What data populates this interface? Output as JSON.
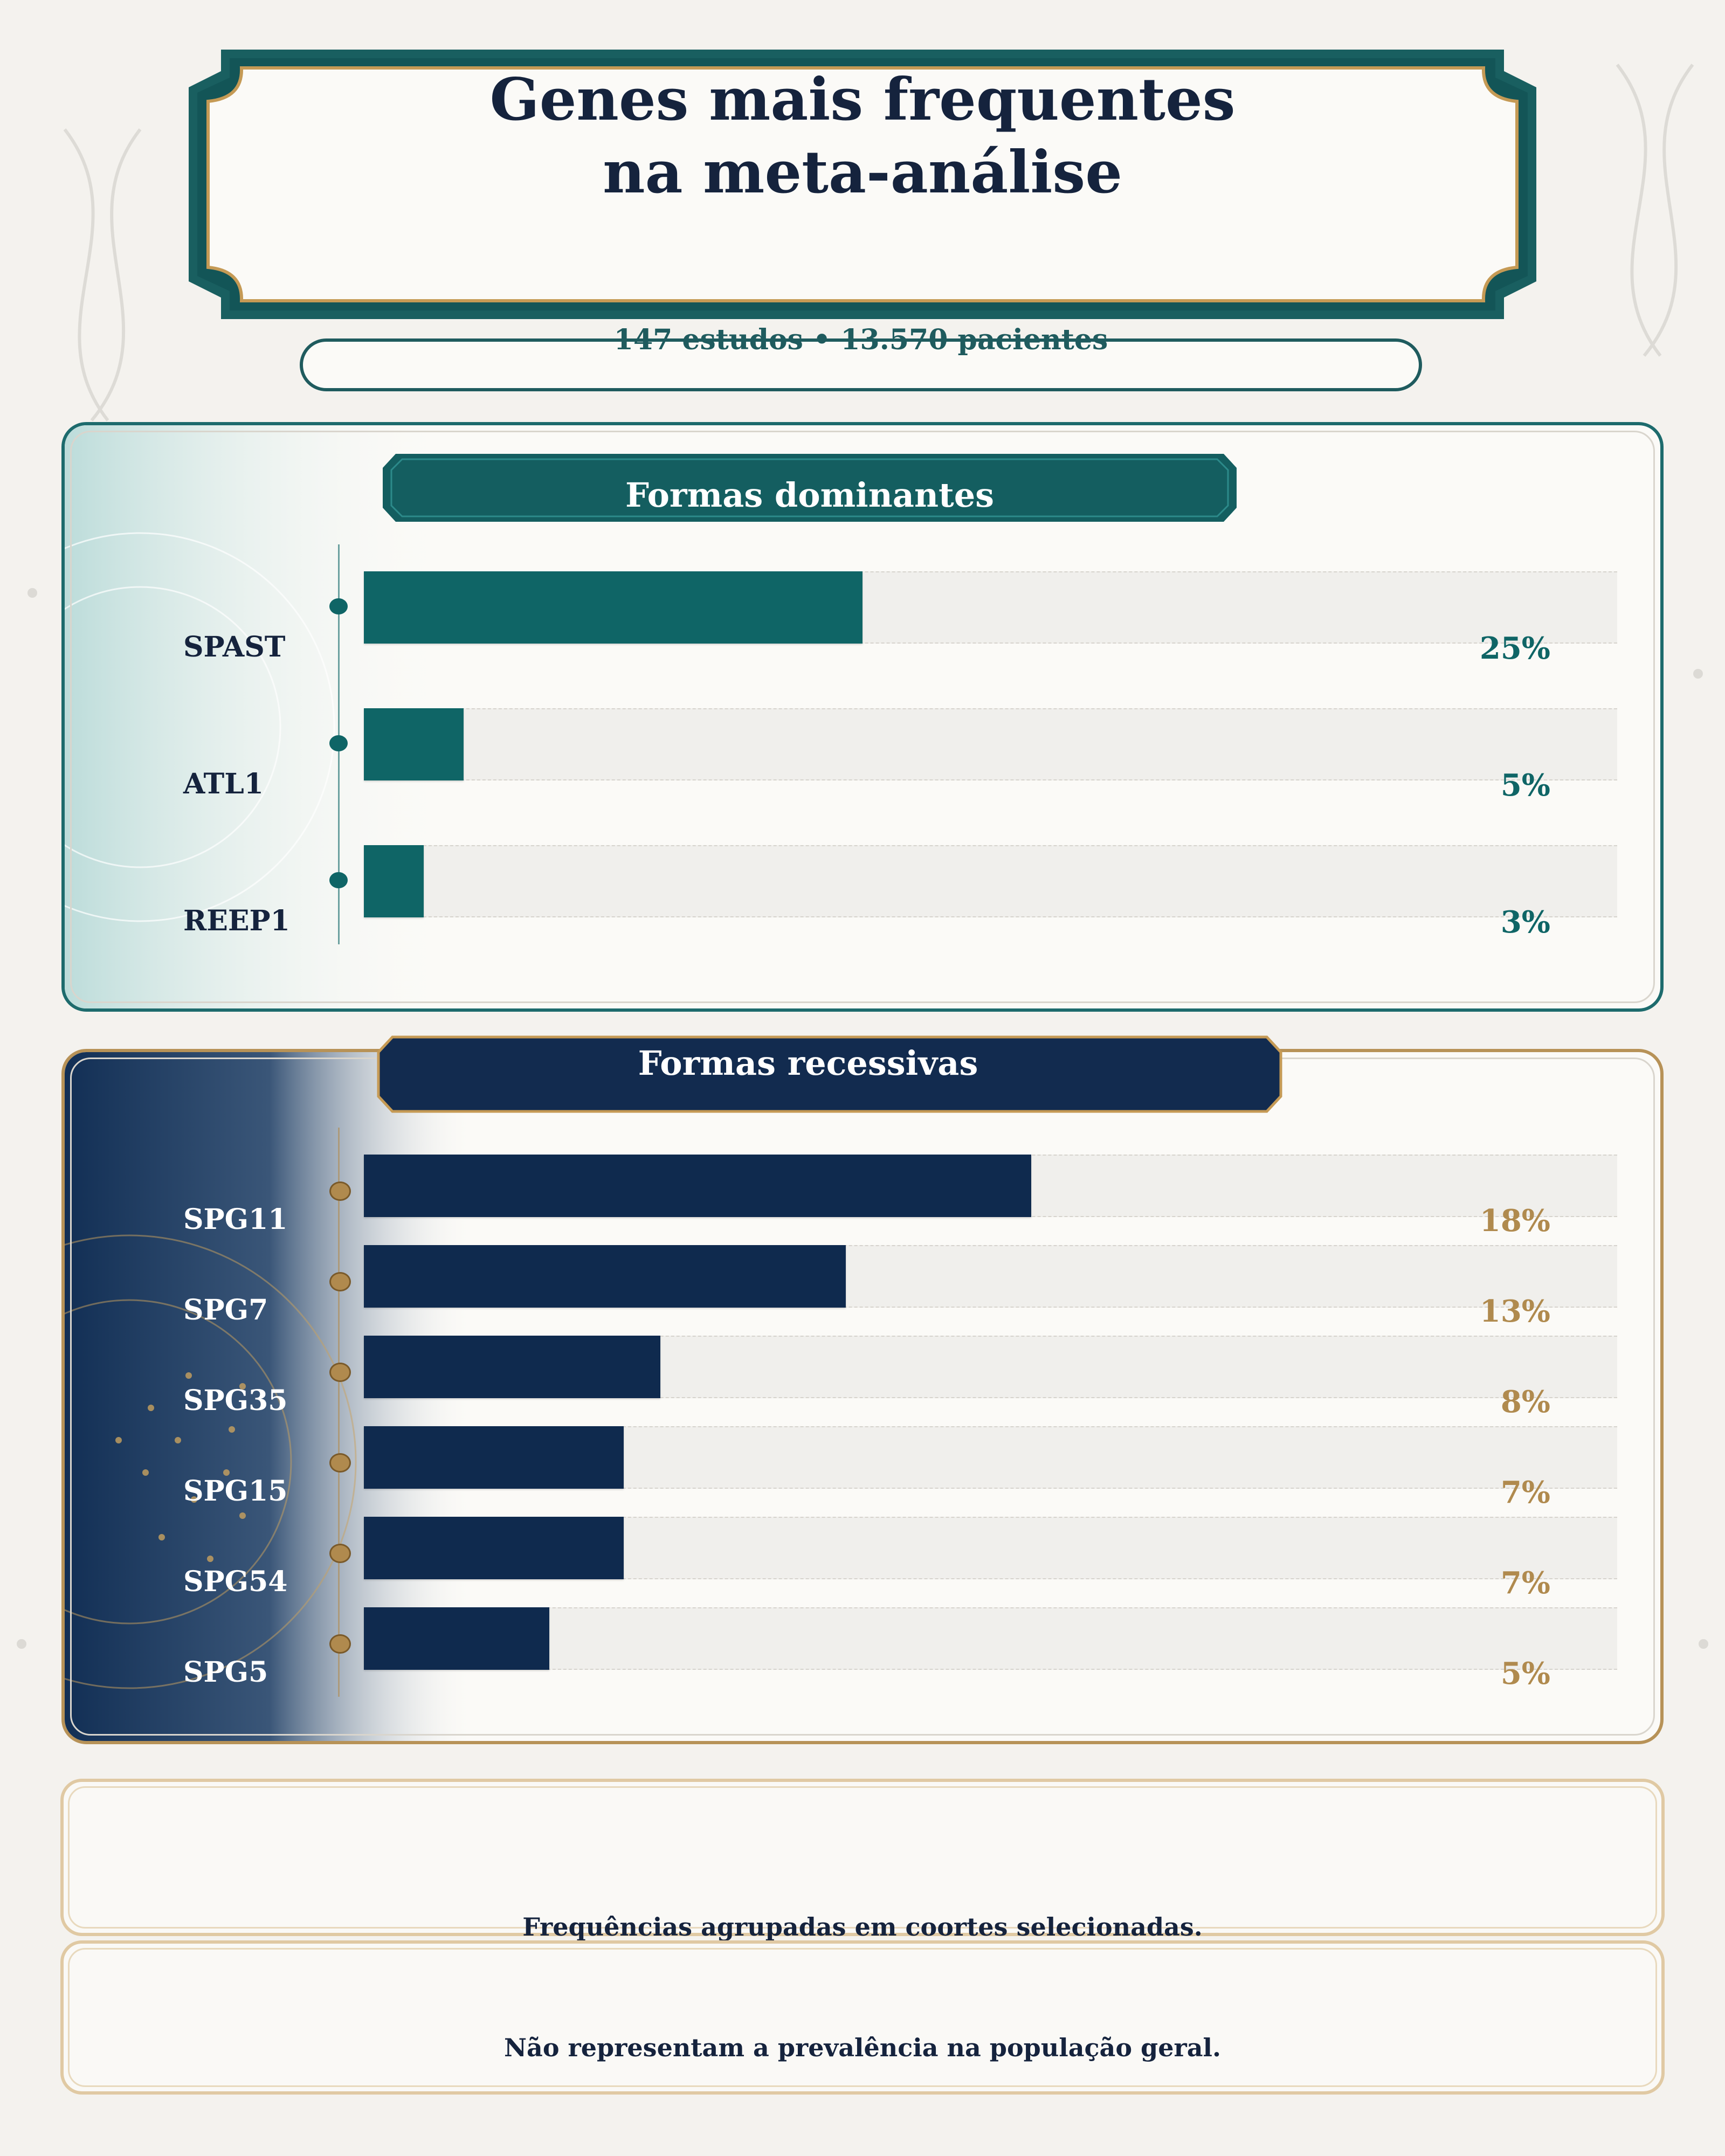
{
  "title": {
    "line1": "Genes mais frequentes",
    "line2": "na meta-análise"
  },
  "subtitle": "147 estudos • 13.570 pacientes",
  "colors": {
    "dominant": "#0f6566",
    "recessive": "#0f2a4e",
    "gold": "#b08a4e",
    "ink": "#15233d"
  },
  "chart_data": [
    {
      "type": "bar",
      "orientation": "horizontal",
      "title": "Formas dominantes",
      "categories": [
        "SPAST",
        "ATL1",
        "REEP1"
      ],
      "values": [
        25,
        5,
        3
      ],
      "value_labels": [
        "25%",
        "5%",
        "3%"
      ],
      "unit": "%"
    },
    {
      "type": "bar",
      "orientation": "horizontal",
      "title": "Formas recessivas",
      "categories": [
        "SPG11",
        "SPG7",
        "SPG35",
        "SPG15",
        "SPG54",
        "SPG5"
      ],
      "values": [
        18,
        13,
        8,
        7,
        7,
        5
      ],
      "value_labels": [
        "18%",
        "13%",
        "8%",
        "7%",
        "7%",
        "5%"
      ],
      "unit": "%"
    }
  ],
  "notes": [
    "Frequências agrupadas em coortes selecionadas.",
    "Não representam a prevalência na população geral."
  ]
}
